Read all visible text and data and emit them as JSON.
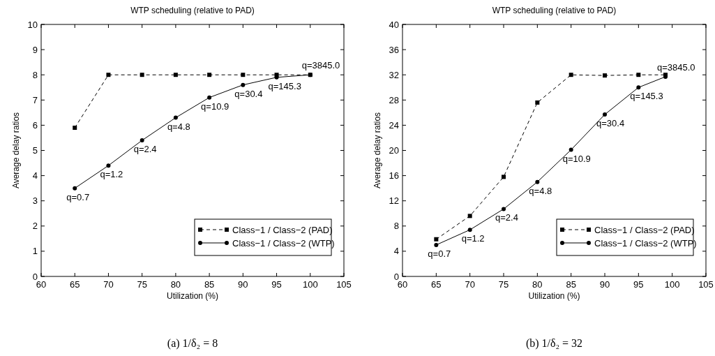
{
  "chart_data": [
    {
      "type": "line",
      "title": "WTP scheduling (relative to PAD)",
      "xlabel": "Utilization (%)",
      "ylabel": "Average delay ratios",
      "xlim": [
        60,
        105
      ],
      "xticks": [
        60,
        65,
        70,
        75,
        80,
        85,
        90,
        95,
        100,
        105
      ],
      "ylim": [
        0,
        10
      ],
      "yticks": [
        0,
        1,
        2,
        3,
        4,
        5,
        6,
        7,
        8,
        9,
        10
      ],
      "legend": "bottom right",
      "grid": false,
      "series": [
        {
          "name": "Class−1 / Class−2 (PAD)",
          "color": "#000000",
          "marker": "square",
          "line_style": "dashed",
          "x": [
            65,
            70,
            75,
            80,
            85,
            90,
            95,
            100
          ],
          "values": [
            5.9,
            8.0,
            8.0,
            8.0,
            8.0,
            8.0,
            8.0,
            8.0
          ]
        },
        {
          "name": "Class−1 / Class−2 (WTP)",
          "color": "#000000",
          "marker": "circle",
          "line_style": "solid",
          "x": [
            65,
            70,
            75,
            80,
            85,
            90,
            95,
            100
          ],
          "values": [
            3.5,
            4.4,
            5.4,
            6.3,
            7.1,
            7.6,
            7.9,
            8.0
          ]
        }
      ],
      "annotations": [
        {
          "text": "q=0.7",
          "x": 65,
          "y": 3.5
        },
        {
          "text": "q=1.2",
          "x": 70,
          "y": 4.4
        },
        {
          "text": "q=2.4",
          "x": 75,
          "y": 5.4
        },
        {
          "text": "q=4.8",
          "x": 80,
          "y": 6.3
        },
        {
          "text": "q=10.9",
          "x": 85,
          "y": 7.1
        },
        {
          "text": "q=30.4",
          "x": 90,
          "y": 7.6
        },
        {
          "text": "q=145.3",
          "x": 95,
          "y": 7.9
        },
        {
          "text": "q=3845.0",
          "x": 100,
          "y": 8.0
        },
        "(a) 1/δ₂ = 8"
      ]
    },
    {
      "type": "line",
      "title": "WTP scheduling (relative to PAD)",
      "xlabel": "Utilization (%)",
      "ylabel": "Average delay ratios",
      "xlim": [
        60,
        105
      ],
      "xticks": [
        60,
        65,
        70,
        75,
        80,
        85,
        90,
        95,
        100,
        105
      ],
      "ylim": [
        0,
        40
      ],
      "yticks": [
        0,
        4,
        8,
        12,
        16,
        20,
        24,
        28,
        32,
        36,
        40
      ],
      "legend": "bottom right",
      "grid": false,
      "series": [
        {
          "name": "Class−1 / Class−2 (PAD)",
          "color": "#000000",
          "marker": "square",
          "line_style": "dashed",
          "x": [
            65,
            70,
            75,
            80,
            85,
            90,
            95,
            99
          ],
          "values": [
            5.9,
            9.6,
            15.8,
            27.6,
            32.0,
            31.9,
            32.0,
            32.0
          ]
        },
        {
          "name": "Class−1 / Class−2 (WTP)",
          "color": "#000000",
          "marker": "circle",
          "line_style": "solid",
          "x": [
            65,
            70,
            75,
            80,
            85,
            90,
            95,
            99
          ],
          "values": [
            5.0,
            7.4,
            10.7,
            15.0,
            20.1,
            25.7,
            30.0,
            31.7
          ]
        }
      ],
      "annotations": [
        {
          "text": "q=0.7",
          "x": 65,
          "y": 5.0
        },
        {
          "text": "q=1.2",
          "x": 70,
          "y": 7.4
        },
        {
          "text": "q=2.4",
          "x": 75,
          "y": 10.7
        },
        {
          "text": "q=4.8",
          "x": 80,
          "y": 15.0
        },
        {
          "text": "q=10.9",
          "x": 85,
          "y": 20.1
        },
        {
          "text": "q=30.4",
          "x": 90,
          "y": 25.7
        },
        {
          "text": "q=145.3",
          "x": 95,
          "y": 30.0
        },
        {
          "text": "q=3845.0",
          "x": 99,
          "y": 31.7
        },
        "(b) 1/δ₂ = 32"
      ]
    }
  ]
}
